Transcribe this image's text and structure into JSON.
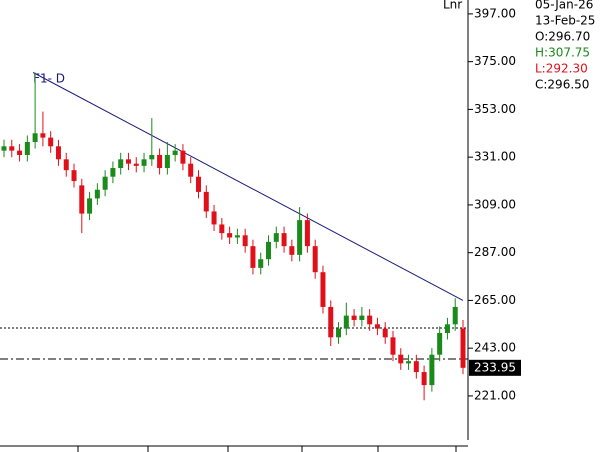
{
  "chart_data": {
    "type": "candlestick",
    "legend_text": "Lnr",
    "annotation": "F1- D",
    "info_lines": [
      {
        "text": "05-Jan-26",
        "color": "#000000"
      },
      {
        "text": "13-Feb-25",
        "color": "#000000"
      },
      {
        "text": "O:296.70",
        "color": "#000000"
      },
      {
        "text": "H:307.75",
        "color": "#1a8a1a"
      },
      {
        "text": "L:292.30",
        "color": "#e0101a"
      },
      {
        "text": "C:296.50",
        "color": "#000000"
      }
    ],
    "up_color": "#1a8a1a",
    "down_color": "#e0101a",
    "open": [
      334,
      336,
      334,
      332,
      338,
      342,
      340,
      336,
      330,
      325,
      318,
      305,
      312,
      316,
      322,
      326,
      330,
      328,
      327,
      330,
      332,
      326,
      332,
      334,
      328,
      322,
      315,
      306,
      300,
      296,
      294,
      295,
      290,
      280,
      284,
      292,
      296,
      290,
      286,
      302,
      290,
      278,
      262,
      248,
      252,
      258,
      256,
      258,
      254,
      252,
      248,
      240,
      236,
      237,
      232,
      226,
      240,
      250,
      254,
      252
    ],
    "high": [
      339,
      339,
      337,
      341,
      370,
      352,
      343,
      339,
      333,
      328,
      321,
      315,
      319,
      325,
      329,
      333,
      333,
      331,
      333,
      349,
      335,
      338,
      337,
      337,
      331,
      325,
      318,
      309,
      303,
      299,
      298,
      298,
      293,
      287,
      295,
      299,
      299,
      293,
      308,
      305,
      293,
      281,
      265,
      255,
      264,
      261,
      262,
      261,
      257,
      255,
      251,
      243,
      240,
      240,
      235,
      243,
      253,
      257,
      266,
      256
    ],
    "low": [
      331,
      331,
      329,
      329,
      335,
      336,
      333,
      327,
      322,
      317,
      296,
      302,
      309,
      313,
      319,
      323,
      325,
      324,
      324,
      327,
      323,
      323,
      329,
      325,
      319,
      312,
      303,
      297,
      293,
      291,
      291,
      287,
      277,
      277,
      281,
      289,
      287,
      283,
      283,
      287,
      275,
      259,
      244,
      245,
      249,
      253,
      253,
      251,
      249,
      245,
      237,
      233,
      233,
      229,
      219,
      223,
      237,
      247,
      251,
      231
    ],
    "close": [
      336,
      334,
      332,
      338,
      342,
      340,
      336,
      330,
      325,
      320,
      305,
      312,
      316,
      322,
      326,
      330,
      328,
      327,
      330,
      332,
      326,
      332,
      334,
      328,
      322,
      315,
      306,
      300,
      296,
      294,
      295,
      290,
      280,
      284,
      292,
      296,
      290,
      286,
      302,
      290,
      278,
      262,
      248,
      252,
      258,
      256,
      258,
      254,
      252,
      248,
      240,
      236,
      237,
      232,
      226,
      240,
      250,
      254,
      262,
      233.95
    ],
    "trendline": {
      "start_index": 4,
      "start_value": 370,
      "end_index": 59,
      "end_value": 265,
      "color": "#1a1a7a"
    },
    "reference_lines": [
      {
        "value": 252.3,
        "style": "dotted"
      },
      {
        "value": 238,
        "style": "dashdot"
      }
    ],
    "ylim": [
      200.7,
      403.4
    ],
    "yticks": [
      {
        "value": 221,
        "label": "221.00"
      },
      {
        "value": 243,
        "label": "243.00"
      },
      {
        "value": 265,
        "label": "265.00"
      },
      {
        "value": 287,
        "label": "287.00"
      },
      {
        "value": 309,
        "label": "309.00"
      },
      {
        "value": 331,
        "label": "331.00"
      },
      {
        "value": 353,
        "label": "353.00"
      },
      {
        "value": 375,
        "label": "375.00"
      },
      {
        "value": 397,
        "label": "397.00"
      }
    ]
  }
}
